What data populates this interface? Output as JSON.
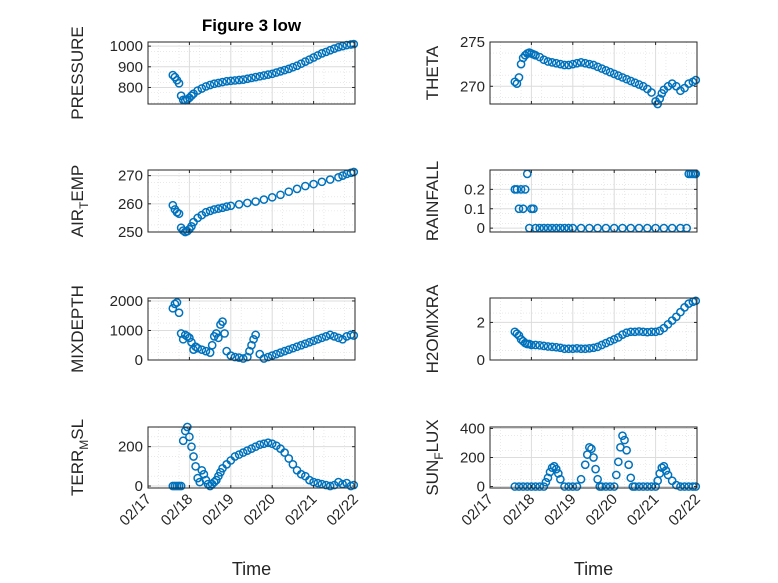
{
  "figure_title": "Figure 3 low",
  "colors": {
    "marker": "#0072BD",
    "grid": "#dcdcdc",
    "axis": "#262626"
  },
  "chart_data": [
    {
      "type": "scatter",
      "title": "Figure 3 low",
      "ylabel": "PRESSURE",
      "xlabel": "",
      "ylim": [
        720,
        1020
      ],
      "yticks": [
        800,
        900,
        1000
      ],
      "xlim": [
        0,
        5
      ],
      "xticklabels": [],
      "grid": true,
      "series": [
        {
          "x": [
            0.6,
            0.65,
            0.7,
            0.75,
            0.8,
            0.85,
            0.9,
            0.95,
            1.0,
            1.05,
            1.1,
            1.2,
            1.3,
            1.4,
            1.5,
            1.6,
            1.7,
            1.8,
            1.9,
            2.0,
            2.1,
            2.2,
            2.3,
            2.4,
            2.5,
            2.6,
            2.7,
            2.8,
            2.9,
            3.0,
            3.1,
            3.2,
            3.3,
            3.4,
            3.5,
            3.6,
            3.7,
            3.8,
            3.9,
            4.0,
            4.1,
            4.2,
            4.3,
            4.4,
            4.5,
            4.6,
            4.7,
            4.8,
            4.9,
            4.97
          ],
          "y": [
            860,
            850,
            835,
            820,
            760,
            740,
            738,
            742,
            750,
            760,
            770,
            785,
            795,
            805,
            812,
            818,
            822,
            826,
            830,
            832,
            834,
            836,
            838,
            842,
            846,
            850,
            854,
            858,
            862,
            866,
            872,
            878,
            884,
            890,
            898,
            905,
            915,
            925,
            935,
            945,
            955,
            965,
            972,
            980,
            988,
            995,
            1000,
            1005,
            1008,
            1010
          ]
        }
      ]
    },
    {
      "type": "scatter",
      "ylabel": "THETA",
      "xlabel": "",
      "ylim": [
        268,
        275
      ],
      "yticks": [
        270,
        275
      ],
      "xlim": [
        0,
        5
      ],
      "xticklabels": [],
      "grid": true,
      "series": [
        {
          "x": [
            0.6,
            0.65,
            0.7,
            0.75,
            0.8,
            0.85,
            0.9,
            0.95,
            1.0,
            1.05,
            1.1,
            1.2,
            1.3,
            1.4,
            1.5,
            1.6,
            1.7,
            1.8,
            1.9,
            2.0,
            2.1,
            2.2,
            2.3,
            2.4,
            2.5,
            2.6,
            2.7,
            2.8,
            2.9,
            3.0,
            3.1,
            3.2,
            3.3,
            3.4,
            3.5,
            3.6,
            3.7,
            3.8,
            3.9,
            4.0,
            4.05,
            4.1,
            4.15,
            4.2,
            4.3,
            4.4,
            4.5,
            4.6,
            4.7,
            4.8,
            4.9,
            4.97
          ],
          "y": [
            270.5,
            270.3,
            271.0,
            272.5,
            273.2,
            273.5,
            273.7,
            273.8,
            273.7,
            273.6,
            273.5,
            273.3,
            273.0,
            272.8,
            272.7,
            272.6,
            272.5,
            272.4,
            272.4,
            272.5,
            272.6,
            272.7,
            272.6,
            272.5,
            272.4,
            272.2,
            272.0,
            271.8,
            271.6,
            271.4,
            271.2,
            271.0,
            270.8,
            270.6,
            270.4,
            270.2,
            270.0,
            269.7,
            269.3,
            268.3,
            268.0,
            268.6,
            269.2,
            269.6,
            270.0,
            270.3,
            270.0,
            269.5,
            269.8,
            270.3,
            270.5,
            270.7
          ]
        }
      ]
    },
    {
      "type": "scatter",
      "ylabel": "AIR_TEMP",
      "xlabel": "",
      "ylim": [
        250,
        272
      ],
      "yticks": [
        250,
        260,
        270
      ],
      "xlim": [
        0,
        5
      ],
      "xticklabels": [],
      "grid": true,
      "series": [
        {
          "x": [
            0.6,
            0.65,
            0.7,
            0.75,
            0.8,
            0.85,
            0.9,
            0.95,
            1.0,
            1.05,
            1.1,
            1.2,
            1.3,
            1.4,
            1.5,
            1.6,
            1.7,
            1.8,
            1.9,
            2.0,
            2.2,
            2.4,
            2.6,
            2.8,
            3.0,
            3.2,
            3.4,
            3.6,
            3.8,
            4.0,
            4.2,
            4.4,
            4.6,
            4.7,
            4.8,
            4.9,
            4.97
          ],
          "y": [
            259.5,
            258.0,
            257.0,
            256.5,
            251.5,
            250.5,
            250.0,
            250.3,
            251.0,
            252.0,
            253.5,
            255.0,
            256.0,
            257.0,
            257.5,
            258.0,
            258.3,
            258.6,
            259.0,
            259.3,
            259.8,
            260.3,
            260.8,
            261.5,
            262.3,
            263.2,
            264.3,
            265.3,
            266.3,
            267.0,
            267.8,
            268.6,
            269.4,
            270.0,
            270.6,
            271.0,
            271.3
          ]
        }
      ]
    },
    {
      "type": "scatter",
      "ylabel": "RAINFALL",
      "xlabel": "",
      "ylim": [
        -0.02,
        0.3
      ],
      "yticks": [
        0,
        0.1,
        0.2
      ],
      "xlim": [
        0,
        5
      ],
      "xticklabels": [],
      "grid": true,
      "series": [
        {
          "x": [
            0.6,
            0.65,
            0.7,
            0.75,
            0.8,
            0.85,
            0.9,
            0.95,
            1.0,
            1.05,
            1.1,
            1.2,
            1.3,
            1.4,
            1.5,
            1.6,
            1.7,
            1.8,
            1.9,
            2.0,
            2.2,
            2.4,
            2.6,
            2.8,
            3.0,
            3.2,
            3.4,
            3.6,
            3.8,
            4.0,
            4.2,
            4.4,
            4.6,
            4.75,
            4.8,
            4.85,
            4.9,
            4.95,
            4.97
          ],
          "y": [
            0.2,
            0.2,
            0.1,
            0.2,
            0.1,
            0.2,
            0.28,
            0.0,
            0.1,
            0.1,
            0,
            0,
            0,
            0,
            0,
            0,
            0,
            0,
            0,
            0,
            0,
            0,
            0,
            0,
            0,
            0,
            0,
            0,
            0,
            0,
            0,
            0,
            0,
            0,
            0.28,
            0.28,
            0.28,
            0.28,
            0.28
          ]
        }
      ]
    },
    {
      "type": "scatter",
      "ylabel": "MIXDEPTH",
      "xlabel": "",
      "ylim": [
        0,
        2100
      ],
      "yticks": [
        0,
        1000,
        2000
      ],
      "xlim": [
        0,
        5
      ],
      "xticklabels": [],
      "grid": true,
      "series": [
        {
          "x": [
            0.6,
            0.65,
            0.7,
            0.75,
            0.8,
            0.85,
            0.9,
            0.95,
            1.0,
            1.05,
            1.1,
            1.15,
            1.2,
            1.3,
            1.4,
            1.5,
            1.55,
            1.6,
            1.65,
            1.7,
            1.75,
            1.8,
            1.85,
            1.9,
            2.0,
            2.1,
            2.2,
            2.3,
            2.4,
            2.45,
            2.5,
            2.55,
            2.6,
            2.7,
            2.8,
            2.9,
            3.0,
            3.1,
            3.2,
            3.3,
            3.4,
            3.5,
            3.6,
            3.7,
            3.8,
            3.9,
            4.0,
            4.1,
            4.2,
            4.3,
            4.4,
            4.5,
            4.6,
            4.7,
            4.8,
            4.9,
            4.97
          ],
          "y": [
            1750,
            1900,
            1950,
            1600,
            900,
            700,
            850,
            800,
            750,
            600,
            350,
            450,
            400,
            350,
            300,
            250,
            500,
            800,
            900,
            750,
            1200,
            1300,
            900,
            300,
            150,
            100,
            80,
            50,
            100,
            300,
            500,
            700,
            850,
            200,
            50,
            100,
            150,
            200,
            250,
            300,
            350,
            400,
            450,
            500,
            550,
            600,
            650,
            700,
            750,
            800,
            850,
            800,
            750,
            700,
            800,
            850,
            830
          ]
        }
      ]
    },
    {
      "type": "scatter",
      "ylabel": "H2OMIXRA",
      "xlabel": "",
      "ylim": [
        0,
        3.3
      ],
      "yticks": [
        0,
        2
      ],
      "xlim": [
        0,
        5
      ],
      "xticklabels": [],
      "grid": true,
      "series": [
        {
          "x": [
            0.6,
            0.65,
            0.7,
            0.75,
            0.8,
            0.85,
            0.9,
            0.95,
            1.0,
            1.1,
            1.2,
            1.3,
            1.4,
            1.5,
            1.6,
            1.7,
            1.8,
            1.9,
            2.0,
            2.1,
            2.2,
            2.3,
            2.4,
            2.5,
            2.6,
            2.7,
            2.8,
            2.9,
            3.0,
            3.1,
            3.2,
            3.3,
            3.4,
            3.5,
            3.6,
            3.7,
            3.8,
            3.9,
            4.0,
            4.1,
            4.2,
            4.3,
            4.4,
            4.5,
            4.6,
            4.7,
            4.8,
            4.9,
            4.97
          ],
          "y": [
            1.5,
            1.4,
            1.3,
            1.1,
            1.0,
            0.9,
            0.85,
            0.85,
            0.8,
            0.8,
            0.78,
            0.75,
            0.72,
            0.7,
            0.68,
            0.65,
            0.6,
            0.6,
            0.6,
            0.62,
            0.6,
            0.6,
            0.62,
            0.65,
            0.7,
            0.8,
            0.9,
            1.0,
            1.1,
            1.2,
            1.35,
            1.45,
            1.5,
            1.5,
            1.52,
            1.5,
            1.48,
            1.5,
            1.5,
            1.55,
            1.7,
            1.9,
            2.1,
            2.3,
            2.55,
            2.8,
            3.0,
            3.1,
            3.15
          ]
        }
      ]
    },
    {
      "type": "scatter",
      "ylabel": "TERR_MSL",
      "xlabel": "Time",
      "ylim": [
        -10,
        300
      ],
      "yticks": [
        0,
        200
      ],
      "xlim": [
        0,
        5
      ],
      "xticklabels": [
        "02/17",
        "02/18",
        "02/19",
        "02/20",
        "02/21",
        "02/22"
      ],
      "grid": true,
      "series": [
        {
          "x": [
            0.6,
            0.65,
            0.7,
            0.75,
            0.8,
            0.85,
            0.9,
            0.95,
            1.0,
            1.05,
            1.1,
            1.15,
            1.2,
            1.25,
            1.3,
            1.35,
            1.4,
            1.45,
            1.5,
            1.55,
            1.6,
            1.65,
            1.7,
            1.75,
            1.8,
            1.9,
            2.0,
            2.1,
            2.2,
            2.3,
            2.4,
            2.5,
            2.6,
            2.7,
            2.8,
            2.9,
            3.0,
            3.1,
            3.2,
            3.3,
            3.4,
            3.5,
            3.6,
            3.7,
            3.8,
            3.9,
            4.0,
            4.1,
            4.2,
            4.3,
            4.4,
            4.5,
            4.6,
            4.7,
            4.8,
            4.9,
            4.97
          ],
          "y": [
            0,
            0,
            0,
            0,
            0,
            230,
            280,
            300,
            250,
            200,
            150,
            100,
            40,
            20,
            80,
            60,
            30,
            10,
            0,
            10,
            20,
            30,
            50,
            70,
            90,
            110,
            130,
            150,
            160,
            170,
            180,
            190,
            200,
            210,
            215,
            220,
            215,
            205,
            190,
            170,
            140,
            110,
            80,
            60,
            50,
            30,
            20,
            15,
            10,
            5,
            0,
            5,
            20,
            10,
            15,
            0,
            5
          ]
        }
      ]
    },
    {
      "type": "scatter",
      "ylabel": "SUN_FLUX",
      "xlabel": "Time",
      "ylim": [
        -10,
        410
      ],
      "yticks": [
        0,
        200,
        400
      ],
      "xlim": [
        0,
        5
      ],
      "xticklabels": [
        "02/17",
        "02/18",
        "02/19",
        "02/20",
        "02/21",
        "02/22"
      ],
      "grid": true,
      "series": [
        {
          "x": [
            0.6,
            0.7,
            0.8,
            0.9,
            1.0,
            1.1,
            1.2,
            1.3,
            1.35,
            1.4,
            1.45,
            1.5,
            1.55,
            1.6,
            1.65,
            1.7,
            1.8,
            1.9,
            2.0,
            2.1,
            2.2,
            2.3,
            2.35,
            2.4,
            2.45,
            2.5,
            2.55,
            2.6,
            2.65,
            2.7,
            2.8,
            2.9,
            3.0,
            3.05,
            3.1,
            3.15,
            3.2,
            3.25,
            3.3,
            3.35,
            3.4,
            3.45,
            3.5,
            3.6,
            3.7,
            3.8,
            3.9,
            4.0,
            4.05,
            4.1,
            4.15,
            4.2,
            4.25,
            4.3,
            4.4,
            4.5,
            4.6,
            4.7,
            4.8,
            4.9,
            4.97
          ],
          "y": [
            0,
            0,
            0,
            0,
            0,
            0,
            0,
            0,
            30,
            60,
            100,
            130,
            140,
            120,
            90,
            50,
            0,
            0,
            0,
            0,
            50,
            150,
            220,
            270,
            260,
            200,
            120,
            50,
            0,
            0,
            0,
            0,
            0,
            80,
            170,
            270,
            350,
            320,
            250,
            150,
            60,
            0,
            0,
            0,
            0,
            0,
            0,
            0,
            40,
            90,
            130,
            140,
            110,
            80,
            40,
            10,
            0,
            0,
            0,
            0,
            0
          ]
        }
      ]
    }
  ]
}
